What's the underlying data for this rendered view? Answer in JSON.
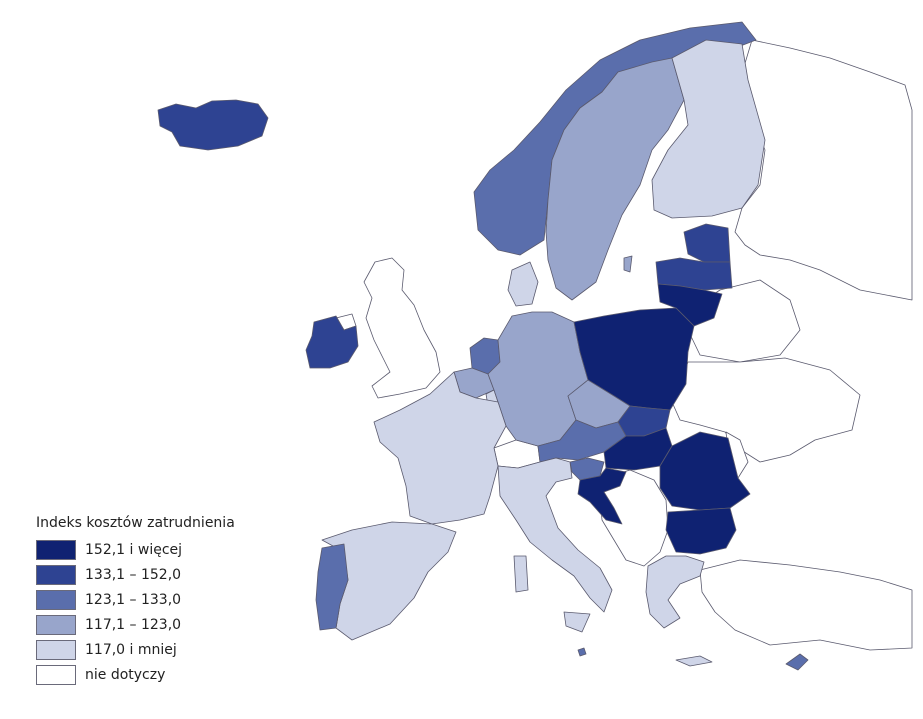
{
  "legend": {
    "title": "Indeks kosztów zatrudnienia",
    "classes": [
      {
        "label": "152,1 i więcej",
        "color": "#0f2272"
      },
      {
        "label": "133,1 – 152,0",
        "color": "#2e4392"
      },
      {
        "label": "123,1 – 133,0",
        "color": "#5a6eac"
      },
      {
        "label": "117,1 – 123,0",
        "color": "#98a5cb"
      },
      {
        "label": "117,0 i mniej",
        "color": "#cfd5e8"
      },
      {
        "label": "nie dotyczy",
        "color": "#ffffff"
      }
    ]
  },
  "regions": [
    {
      "name": "Polska",
      "class": 0
    },
    {
      "name": "Litwa",
      "class": 0
    },
    {
      "name": "Węgry",
      "class": 0
    },
    {
      "name": "Rumunia",
      "class": 0
    },
    {
      "name": "Bułgaria",
      "class": 0
    },
    {
      "name": "Chorwacja",
      "class": 0
    },
    {
      "name": "Islandia",
      "class": 1
    },
    {
      "name": "Irlandia",
      "class": 1
    },
    {
      "name": "Łotwa",
      "class": 1
    },
    {
      "name": "Estonia",
      "class": 1
    },
    {
      "name": "Słowacja",
      "class": 1
    },
    {
      "name": "Norwegia",
      "class": 2
    },
    {
      "name": "Portugalia",
      "class": 2
    },
    {
      "name": "Niderlandy",
      "class": 2
    },
    {
      "name": "Austria",
      "class": 2
    },
    {
      "name": "Słowenia",
      "class": 2
    },
    {
      "name": "Malta",
      "class": 2
    },
    {
      "name": "Cypr",
      "class": 2
    },
    {
      "name": "Szwecja",
      "class": 3
    },
    {
      "name": "Niemcy",
      "class": 3
    },
    {
      "name": "Belgia",
      "class": 3
    },
    {
      "name": "Czechy",
      "class": 3
    },
    {
      "name": "Finlandia",
      "class": 4
    },
    {
      "name": "Dania",
      "class": 4
    },
    {
      "name": "Francja",
      "class": 4
    },
    {
      "name": "Hiszpania",
      "class": 4
    },
    {
      "name": "Włochy",
      "class": 4
    },
    {
      "name": "Grecja",
      "class": 4
    },
    {
      "name": "Luksemburg",
      "class": 4
    },
    {
      "name": "Wielka Brytania",
      "class": 5
    },
    {
      "name": "Szwajcaria",
      "class": 5
    },
    {
      "name": "Rosja",
      "class": 5
    },
    {
      "name": "Białoruś",
      "class": 5
    },
    {
      "name": "Ukraina",
      "class": 5
    },
    {
      "name": "Turcja",
      "class": 5
    },
    {
      "name": "Bałkany Zachodnie",
      "class": 5
    }
  ]
}
